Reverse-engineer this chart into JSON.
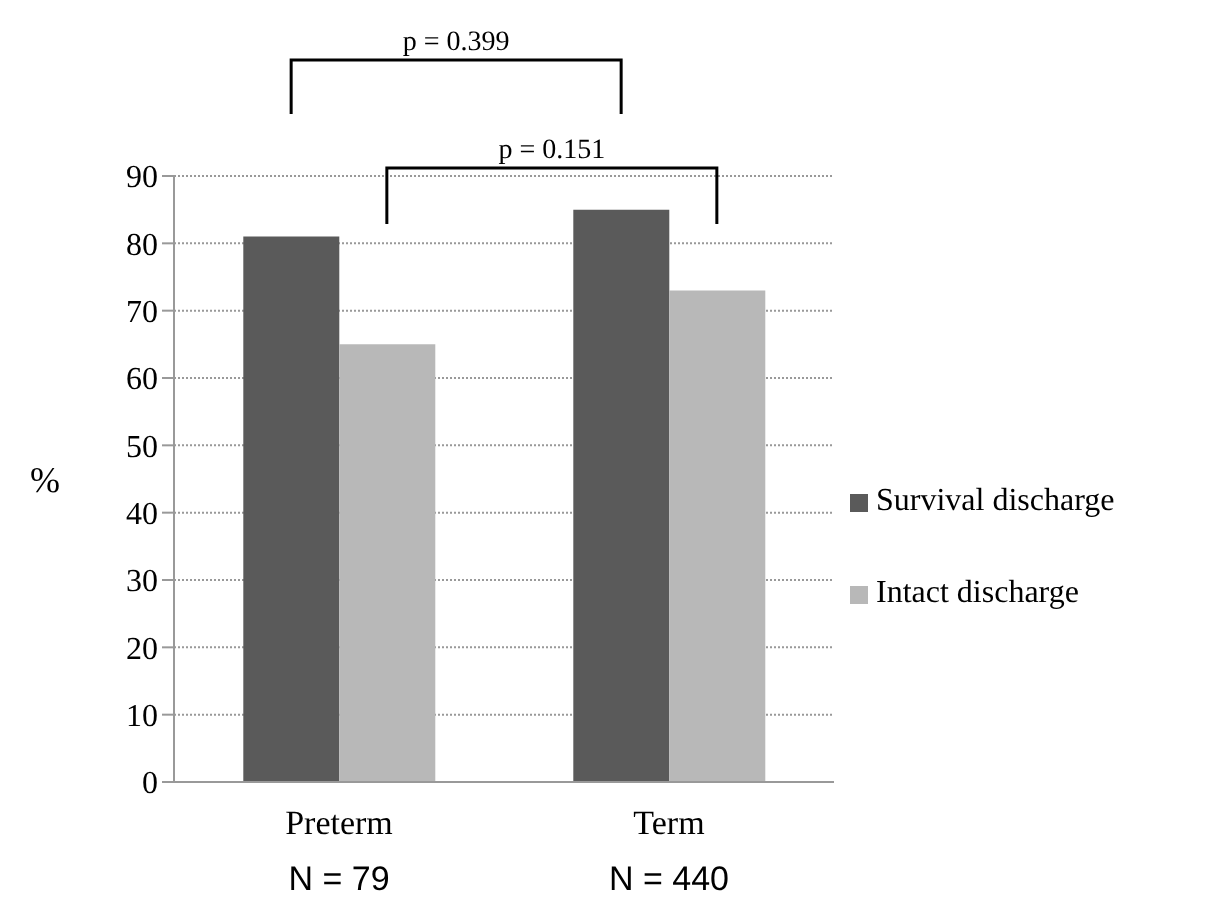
{
  "chart_data": {
    "type": "bar",
    "categories": [
      "Preterm\nN = 79",
      "Term\nN = 440"
    ],
    "ylabel": "%",
    "series": [
      {
        "name": "Survival discharge",
        "color": "#5a5a5a",
        "values": [
          81,
          85
        ]
      },
      {
        "name": "Intact discharge",
        "color": "#b8b8b8",
        "values": [
          65,
          73
        ]
      }
    ],
    "ylim": [
      0,
      90
    ],
    "yticks": [
      0,
      10,
      20,
      30,
      40,
      50,
      60,
      70,
      80,
      90
    ],
    "grid": "y",
    "legend": "right",
    "annotations": [
      "p = 0.399",
      "p = 0.151"
    ]
  }
}
